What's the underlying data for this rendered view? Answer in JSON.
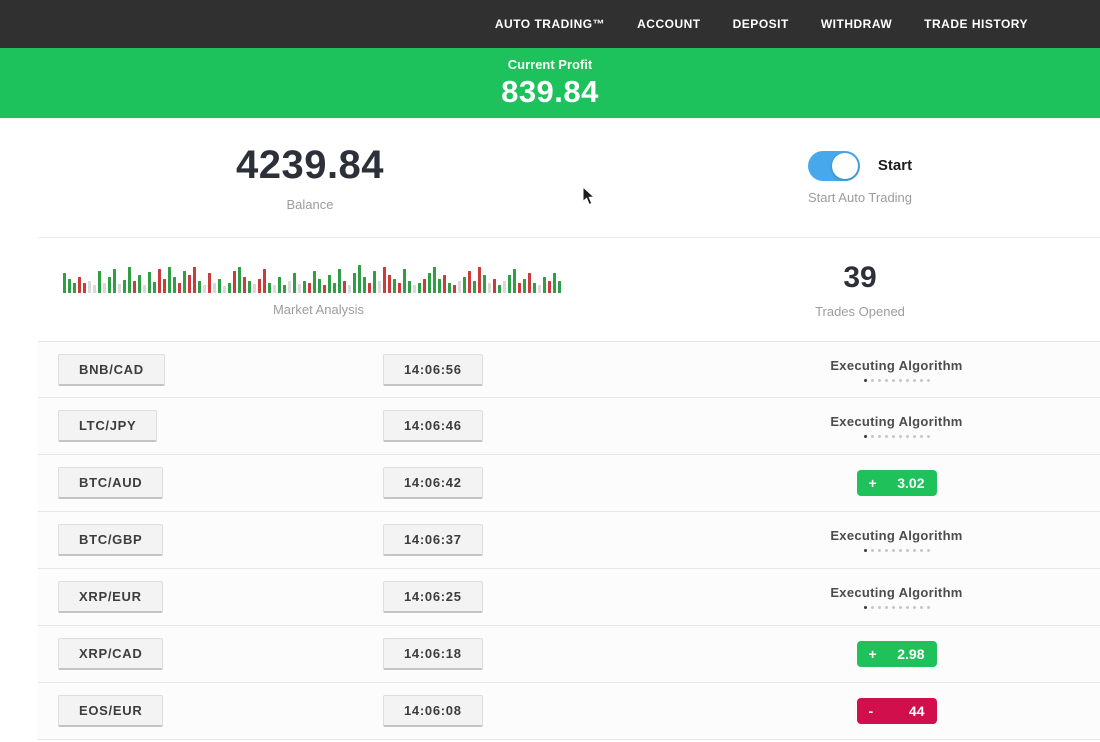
{
  "navbar": {
    "items": [
      {
        "label": "AUTO TRADING™"
      },
      {
        "label": "ACCOUNT"
      },
      {
        "label": "DEPOSIT"
      },
      {
        "label": "WITHDRAW"
      },
      {
        "label": "TRADE HISTORY"
      }
    ]
  },
  "profit_banner": {
    "label": "Current Profit",
    "value": "839.84",
    "bg_color": "#1ec25c"
  },
  "stats": {
    "balance": {
      "value": "4239.84",
      "label": "Balance"
    },
    "auto_trading": {
      "toggle_label": "Start",
      "label": "Start Auto Trading",
      "toggle_on": true,
      "toggle_color": "#47a9ec"
    },
    "market_analysis": {
      "label": "Market Analysis",
      "bar_colors": {
        "g": "#2f9e44",
        "r": "#cc3b3b",
        "l": "#d9d9d9"
      },
      "bars": [
        [
          "g",
          20
        ],
        [
          "g",
          14
        ],
        [
          "g",
          10
        ],
        [
          "r",
          16
        ],
        [
          "r",
          10
        ],
        [
          "l",
          12
        ],
        [
          "l",
          8
        ],
        [
          "g",
          22
        ],
        [
          "l",
          10
        ],
        [
          "g",
          16
        ],
        [
          "g",
          24
        ],
        [
          "l",
          9
        ],
        [
          "g",
          13
        ],
        [
          "g",
          26
        ],
        [
          "r",
          12
        ],
        [
          "g",
          18
        ],
        [
          "l",
          8
        ],
        [
          "g",
          21
        ],
        [
          "g",
          11
        ],
        [
          "r",
          24
        ],
        [
          "r",
          14
        ],
        [
          "g",
          26
        ],
        [
          "g",
          16
        ],
        [
          "r",
          10
        ],
        [
          "g",
          22
        ],
        [
          "r",
          18
        ],
        [
          "r",
          26
        ],
        [
          "g",
          12
        ],
        [
          "l",
          8
        ],
        [
          "r",
          20
        ],
        [
          "l",
          10
        ],
        [
          "g",
          14
        ],
        [
          "l",
          7
        ],
        [
          "g",
          10
        ],
        [
          "r",
          22
        ],
        [
          "g",
          26
        ],
        [
          "r",
          16
        ],
        [
          "g",
          12
        ],
        [
          "l",
          9
        ],
        [
          "r",
          14
        ],
        [
          "r",
          24
        ],
        [
          "g",
          10
        ],
        [
          "l",
          8
        ],
        [
          "g",
          16
        ],
        [
          "g",
          8
        ],
        [
          "l",
          12
        ],
        [
          "g",
          20
        ],
        [
          "l",
          9
        ],
        [
          "g",
          12
        ],
        [
          "r",
          10
        ],
        [
          "g",
          22
        ],
        [
          "g",
          14
        ],
        [
          "r",
          8
        ],
        [
          "g",
          18
        ],
        [
          "g",
          10
        ],
        [
          "g",
          24
        ],
        [
          "r",
          12
        ],
        [
          "l",
          8
        ],
        [
          "g",
          20
        ],
        [
          "g",
          28
        ],
        [
          "g",
          16
        ],
        [
          "r",
          10
        ],
        [
          "g",
          22
        ],
        [
          "l",
          12
        ],
        [
          "r",
          26
        ],
        [
          "r",
          18
        ],
        [
          "g",
          14
        ],
        [
          "r",
          10
        ],
        [
          "g",
          24
        ],
        [
          "g",
          12
        ],
        [
          "l",
          8
        ],
        [
          "g",
          10
        ],
        [
          "r",
          14
        ],
        [
          "g",
          20
        ],
        [
          "g",
          26
        ],
        [
          "g",
          14
        ],
        [
          "r",
          18
        ],
        [
          "g",
          10
        ],
        [
          "r",
          8
        ],
        [
          "l",
          12
        ],
        [
          "g",
          16
        ],
        [
          "r",
          22
        ],
        [
          "g",
          12
        ],
        [
          "r",
          26
        ],
        [
          "g",
          18
        ],
        [
          "l",
          10
        ],
        [
          "r",
          14
        ],
        [
          "g",
          8
        ],
        [
          "l",
          12
        ],
        [
          "g",
          18
        ],
        [
          "g",
          24
        ],
        [
          "r",
          10
        ],
        [
          "g",
          14
        ],
        [
          "r",
          20
        ],
        [
          "g",
          10
        ],
        [
          "l",
          8
        ],
        [
          "g",
          16
        ],
        [
          "r",
          12
        ],
        [
          "g",
          20
        ],
        [
          "g",
          12
        ]
      ]
    },
    "trades_opened": {
      "value": "39",
      "label": "Trades Opened"
    }
  },
  "trades": {
    "executing_label": "Executing Algorithm",
    "executing_dots": 10,
    "profit_color": "#1fc15b",
    "loss_color": "#d00f4c",
    "rows": [
      {
        "pair": "BNB/CAD",
        "time": "14:06:56",
        "status": "executing"
      },
      {
        "pair": "LTC/JPY",
        "time": "14:06:46",
        "status": "executing"
      },
      {
        "pair": "BTC/AUD",
        "time": "14:06:42",
        "status": "profit",
        "sign": "+",
        "amount": "3.02"
      },
      {
        "pair": "BTC/GBP",
        "time": "14:06:37",
        "status": "executing"
      },
      {
        "pair": "XRP/EUR",
        "time": "14:06:25",
        "status": "executing"
      },
      {
        "pair": "XRP/CAD",
        "time": "14:06:18",
        "status": "profit",
        "sign": "+",
        "amount": "2.98"
      },
      {
        "pair": "EOS/EUR",
        "time": "14:06:08",
        "status": "loss",
        "sign": "-",
        "amount": "44"
      }
    ]
  }
}
